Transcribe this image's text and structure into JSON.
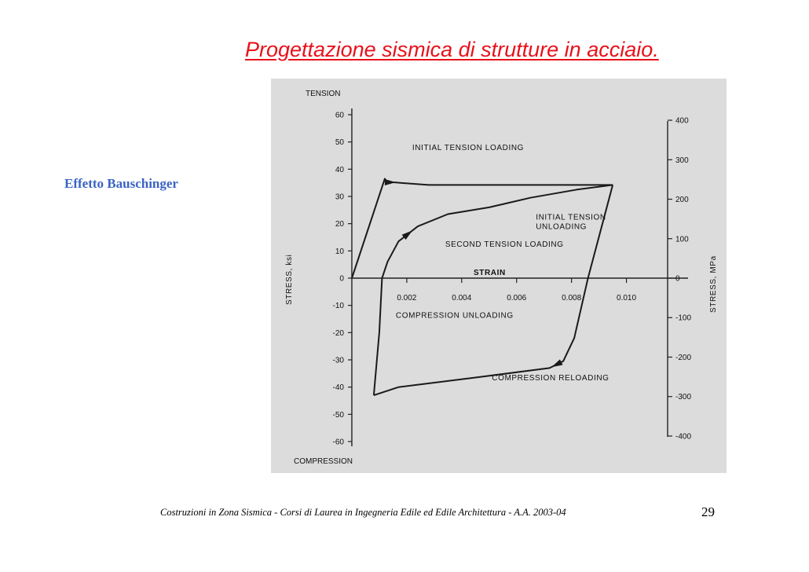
{
  "slide": {
    "title": "Progettazione sismica di strutture in acciaio.",
    "side_label": "Effetto Bauschinger",
    "footer": "Costruzioni in Zona Sismica - Corsi di Laurea in Ingegneria Edile ed Edile Architettura - A.A. 2003-04",
    "page_number": "29"
  },
  "chart_data": {
    "type": "line",
    "title": "",
    "xlabel": "STRAIN",
    "ylabel": "STRESS, ksi",
    "y2label": "STRESS, MPa",
    "top_label": "TENSION",
    "bottom_label": "COMPRESSION",
    "xlim": [
      -0.0012,
      0.0115
    ],
    "ylim": [
      -60,
      60
    ],
    "y2lim": [
      -414,
      414
    ],
    "x_ticks": [
      {
        "value": 0.002,
        "label": "0.002"
      },
      {
        "value": 0.004,
        "label": "0.004"
      },
      {
        "value": 0.006,
        "label": "0.006"
      },
      {
        "value": 0.008,
        "label": "0.008"
      },
      {
        "value": 0.01,
        "label": "0.010"
      }
    ],
    "y_ticks": [
      {
        "value": 60,
        "label": "60"
      },
      {
        "value": 50,
        "label": "50"
      },
      {
        "value": 40,
        "label": "40"
      },
      {
        "value": 30,
        "label": "30"
      },
      {
        "value": 20,
        "label": "20"
      },
      {
        "value": 10,
        "label": "10"
      },
      {
        "value": 0,
        "label": "0"
      },
      {
        "value": -10,
        "label": "-10"
      },
      {
        "value": -20,
        "label": "-20"
      },
      {
        "value": -30,
        "label": "-30"
      },
      {
        "value": -40,
        "label": "-40"
      },
      {
        "value": -50,
        "label": "-50"
      },
      {
        "value": -60,
        "label": "-60"
      }
    ],
    "y2_ticks": [
      {
        "value": 400,
        "label": "400"
      },
      {
        "value": 300,
        "label": "300"
      },
      {
        "value": 200,
        "label": "200"
      },
      {
        "value": 100,
        "label": "100"
      },
      {
        "value": 0,
        "label": "0"
      },
      {
        "value": -100,
        "label": "-100"
      },
      {
        "value": -200,
        "label": "-200"
      },
      {
        "value": -300,
        "label": "-300"
      },
      {
        "value": -400,
        "label": "-400"
      }
    ],
    "series": [
      {
        "points": [
          [
            0,
            0
          ],
          [
            0.0012,
            36.5
          ],
          [
            0.0013,
            35.2
          ],
          [
            0.0015,
            35.2
          ],
          [
            0.0028,
            34.2
          ],
          [
            0.0095,
            34.2
          ]
        ]
      },
      {
        "points": [
          [
            0.0095,
            34.2
          ],
          [
            0.0086,
            0
          ],
          [
            0.0081,
            -22
          ],
          [
            0.0077,
            -30.5
          ],
          [
            0.0072,
            -33
          ],
          [
            0.0045,
            -36.5
          ],
          [
            0.0017,
            -40
          ],
          [
            0.0008,
            -43
          ]
        ]
      },
      {
        "points": [
          [
            0.0008,
            -43
          ],
          [
            0.001,
            -20
          ],
          [
            0.0011,
            0
          ],
          [
            0.0013,
            6
          ],
          [
            0.0017,
            13.5
          ],
          [
            0.0024,
            19
          ],
          [
            0.0035,
            23.5
          ],
          [
            0.005,
            26
          ],
          [
            0.0065,
            29.5
          ],
          [
            0.0082,
            32.5
          ],
          [
            0.0095,
            34.2
          ]
        ]
      }
    ],
    "annotations": [
      {
        "text": "INITIAL TENSION LOADING",
        "x": 0.0022,
        "y": 47
      },
      {
        "text": "INITIAL TENSION",
        "x": 0.0067,
        "y": 21.5
      },
      {
        "text": "UNLOADING",
        "x": 0.0067,
        "y": 18
      },
      {
        "text": "SECOND TENSION LOADING",
        "x": 0.0034,
        "y": 11.5
      },
      {
        "text": "COMPRESSION UNLOADING",
        "x": 0.0016,
        "y": -14.5
      },
      {
        "text": "COMPRESSION RELOADING",
        "x": 0.0051,
        "y": -37.5
      }
    ]
  }
}
